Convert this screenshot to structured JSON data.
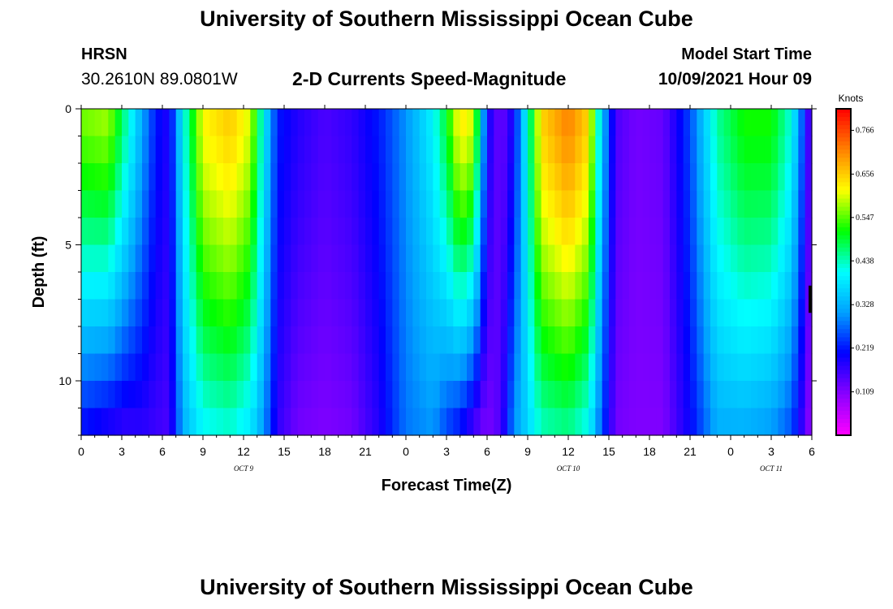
{
  "header": {
    "title": "University of Southern Mississippi Ocean Cube",
    "station": "HRSN",
    "coords": "30.2610N  89.0801W",
    "plot_title": "2-D Currents Speed-Magnitude",
    "model_start_label": "Model Start Time",
    "model_start_time": "10/09/2021 Hour 09"
  },
  "footer": {
    "title": "University of Southern Mississippi Ocean Cube"
  },
  "colors": {
    "axis": "#000000",
    "colormap": [
      "#ff00ff",
      "#8a00ff",
      "#0000ff",
      "#00a0ff",
      "#00ffff",
      "#00ff00",
      "#ffff00",
      "#ff8000",
      "#ff0000"
    ]
  },
  "chart_data": {
    "type": "heatmap",
    "title": "2-D Currents Speed-Magnitude",
    "xlabel": "Forecast Time(Z)",
    "ylabel": "Depth (ft)",
    "x_hours_since_oct9_00z": [
      0,
      54
    ],
    "x_ticks": [
      0,
      3,
      6,
      9,
      12,
      15,
      18,
      21,
      24,
      27,
      30,
      33,
      36,
      39,
      42,
      45,
      48,
      51,
      54
    ],
    "x_tick_labels": [
      "0",
      "3",
      "6",
      "9",
      "12",
      "15",
      "18",
      "21",
      "0",
      "3",
      "6",
      "9",
      "12",
      "15",
      "18",
      "21",
      "0",
      "3",
      "6"
    ],
    "date_labels": [
      {
        "label": "OCT 9",
        "hour": 12
      },
      {
        "label": "OCT 10",
        "hour": 36
      },
      {
        "label": "OCT 11",
        "hour": 51
      }
    ],
    "ylim": [
      0,
      12
    ],
    "y_ticks": [
      0,
      5,
      10
    ],
    "y_tick_labels": [
      "0",
      "5",
      "10"
    ],
    "colorbar": {
      "label": "Knots",
      "range": [
        0,
        0.82
      ],
      "ticks": [
        0.109,
        0.219,
        0.328,
        0.438,
        0.547,
        0.656,
        0.766
      ],
      "tick_labels": [
        "0.109",
        "0.219",
        "0.328",
        "0.438",
        "0.547",
        "0.656",
        "0.766"
      ]
    },
    "speed_profile_knots": {
      "description": "approximate surface and bottom speed keyframes by forecast hour; depth interpolated between them",
      "hour": [
        0,
        2,
        3.3,
        4.5,
        5.5,
        6.5,
        7.5,
        9,
        11,
        12.5,
        13.5,
        14.5,
        16,
        18,
        20,
        22,
        24,
        26,
        27,
        28,
        29,
        30,
        31,
        32,
        34,
        36,
        37.5,
        38.5,
        39.5,
        41,
        43,
        45,
        47,
        49,
        51,
        52.5,
        53.5,
        54
      ],
      "surface": [
        0.56,
        0.58,
        0.45,
        0.32,
        0.22,
        0.18,
        0.4,
        0.62,
        0.66,
        0.6,
        0.4,
        0.22,
        0.18,
        0.15,
        0.17,
        0.22,
        0.3,
        0.4,
        0.5,
        0.64,
        0.6,
        0.2,
        0.12,
        0.2,
        0.65,
        0.72,
        0.65,
        0.35,
        0.15,
        0.12,
        0.13,
        0.25,
        0.45,
        0.52,
        0.52,
        0.42,
        0.22,
        0.1
      ],
      "bottom": [
        0.2,
        0.17,
        0.16,
        0.17,
        0.16,
        0.15,
        0.32,
        0.4,
        0.42,
        0.38,
        0.3,
        0.17,
        0.12,
        0.11,
        0.12,
        0.18,
        0.28,
        0.3,
        0.24,
        0.2,
        0.14,
        0.11,
        0.15,
        0.3,
        0.43,
        0.45,
        0.4,
        0.25,
        0.12,
        0.11,
        0.11,
        0.2,
        0.32,
        0.32,
        0.3,
        0.25,
        0.14,
        0.08
      ]
    }
  }
}
